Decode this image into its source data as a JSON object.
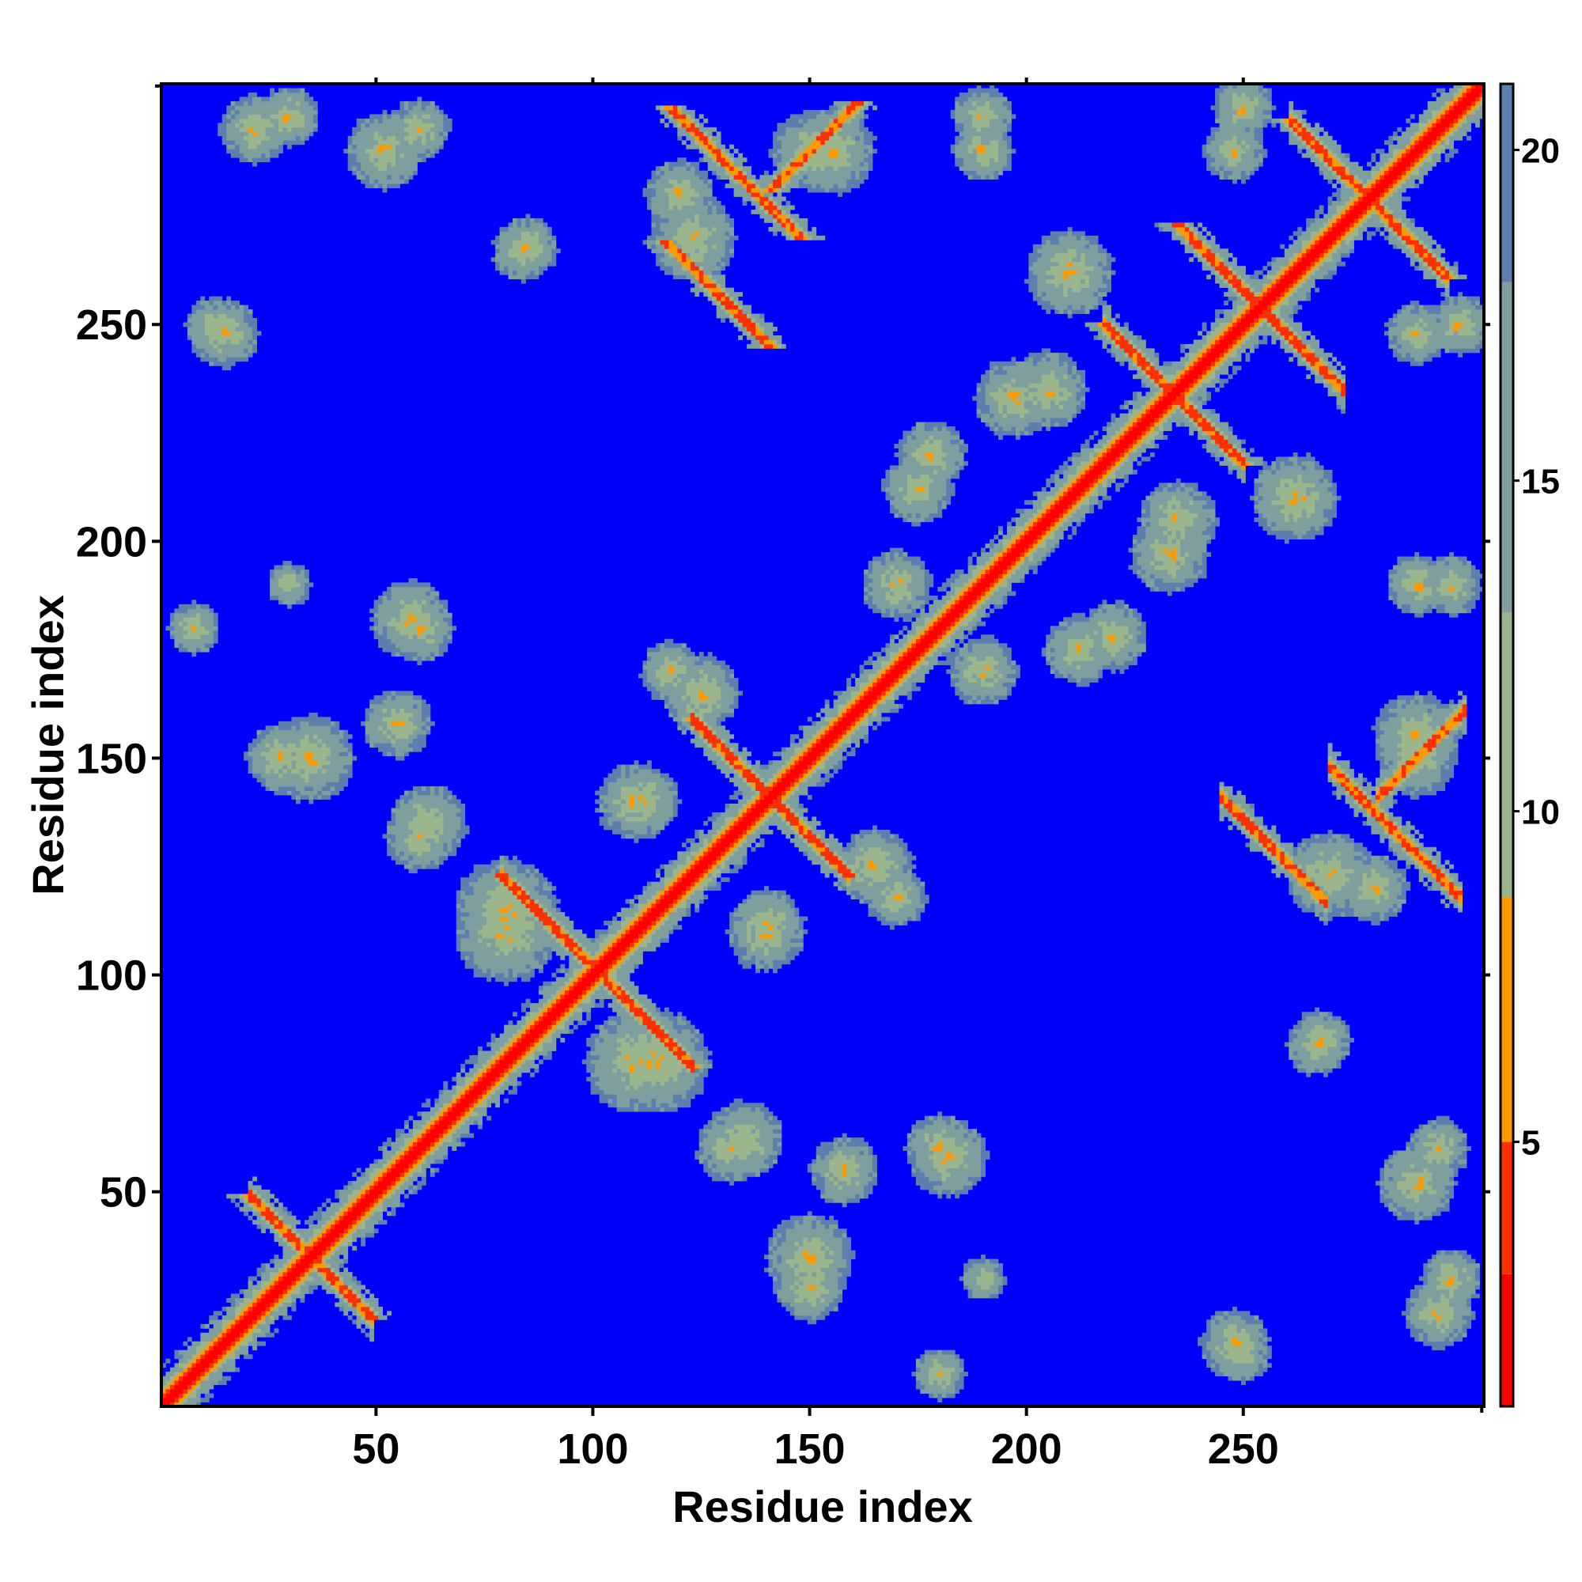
{
  "chart_data": {
    "type": "heatmap",
    "title": "",
    "xlabel": "Residue index",
    "ylabel": "Residue index",
    "n_residues": 305,
    "xlim": [
      1,
      305
    ],
    "ylim": [
      1,
      305
    ],
    "x_ticks": [
      50,
      100,
      150,
      200,
      250
    ],
    "y_ticks": [
      50,
      100,
      150,
      200,
      250
    ],
    "colorbar": {
      "ticks": [
        5,
        10,
        15,
        20
      ],
      "range": [
        1,
        21
      ],
      "segments": [
        {
          "from": 1,
          "to": 3,
          "color": "#ff0000"
        },
        {
          "from": 3,
          "to": 5,
          "color": "#ff3000"
        },
        {
          "from": 5,
          "to": 8.7,
          "color": "#ff9900"
        },
        {
          "from": 8.7,
          "to": 13,
          "color": "#9bb58d"
        },
        {
          "from": 13,
          "to": 18,
          "color": "#7f9e9e"
        },
        {
          "from": 18,
          "to": 21,
          "color": "#5c7fae"
        }
      ]
    },
    "background_value": 21,
    "background_color": "#0000ff",
    "contact_features": [
      {
        "kind": "diagonal",
        "from": 1,
        "to": 305
      },
      {
        "kind": "antiparallel",
        "center": [
          140,
          140
        ],
        "half_length": 18
      },
      {
        "kind": "antiparallel",
        "center": [
          132,
          284
        ],
        "half_length": 15
      },
      {
        "kind": "antiparallel",
        "center": [
          128,
          256
        ],
        "half_length": 12
      },
      {
        "kind": "antiparallel",
        "center": [
          248,
          258
        ],
        "half_length": 14
      },
      {
        "kind": "antiparallel",
        "center": [
          100,
          100
        ],
        "half_length": 22
      },
      {
        "kind": "antiparallel",
        "center": [
          34,
          34
        ],
        "half_length": 14
      },
      {
        "kind": "antiparallel",
        "center": [
          233,
          233
        ],
        "half_length": 16
      },
      {
        "kind": "antiparallel",
        "center": [
          278,
          278
        ],
        "half_length": 18
      },
      {
        "kind": "parallel",
        "center": [
          150,
          290
        ],
        "half_length": 10
      },
      {
        "kind": "blob",
        "center": [
          22,
          295
        ],
        "radius": 8
      },
      {
        "kind": "blob",
        "center": [
          52,
          290
        ],
        "radius": 9
      },
      {
        "kind": "blob",
        "center": [
          12,
          250
        ],
        "radius": 6
      },
      {
        "kind": "blob",
        "center": [
          84,
          267
        ],
        "radius": 7
      },
      {
        "kind": "blob",
        "center": [
          58,
          182
        ],
        "radius": 9
      },
      {
        "kind": "blob",
        "center": [
          28,
          150
        ],
        "radius": 8
      },
      {
        "kind": "blob",
        "center": [
          62,
          135
        ],
        "radius": 9
      },
      {
        "kind": "blob",
        "center": [
          80,
          110
        ],
        "radius": 12
      },
      {
        "kind": "blob",
        "center": [
          115,
          80
        ],
        "radius": 12
      },
      {
        "kind": "blob",
        "center": [
          132,
          60
        ],
        "radius": 8
      },
      {
        "kind": "blob",
        "center": [
          150,
          35
        ],
        "radius": 10
      },
      {
        "kind": "blob",
        "center": [
          158,
          55
        ],
        "radius": 8
      },
      {
        "kind": "blob",
        "center": [
          180,
          60
        ],
        "radius": 8
      },
      {
        "kind": "blob",
        "center": [
          112,
          140
        ],
        "radius": 8
      },
      {
        "kind": "blob",
        "center": [
          140,
          110
        ],
        "radius": 9
      },
      {
        "kind": "blob",
        "center": [
          165,
          125
        ],
        "radius": 9
      },
      {
        "kind": "blob",
        "center": [
          118,
          170
        ],
        "radius": 7
      },
      {
        "kind": "blob",
        "center": [
          190,
          170
        ],
        "radius": 8
      },
      {
        "kind": "blob",
        "center": [
          178,
          220
        ],
        "radius": 8
      },
      {
        "kind": "blob",
        "center": [
          205,
          235
        ],
        "radius": 9
      },
      {
        "kind": "blob",
        "center": [
          210,
          262
        ],
        "radius": 10
      },
      {
        "kind": "blob",
        "center": [
          233,
          197
        ],
        "radius": 9
      },
      {
        "kind": "blob",
        "center": [
          212,
          175
        ],
        "radius": 8
      },
      {
        "kind": "blob",
        "center": [
          262,
          210
        ],
        "radius": 9
      },
      {
        "kind": "blob",
        "center": [
          270,
          123
        ],
        "radius": 10
      },
      {
        "kind": "blob",
        "center": [
          290,
          155
        ],
        "radius": 10
      },
      {
        "kind": "blob",
        "center": [
          298,
          190
        ],
        "radius": 7
      },
      {
        "kind": "blob",
        "center": [
          268,
          85
        ],
        "radius": 7
      },
      {
        "kind": "blob",
        "center": [
          295,
          60
        ],
        "radius": 7
      },
      {
        "kind": "blob",
        "center": [
          298,
          30
        ],
        "radius": 7
      },
      {
        "kind": "blob",
        "center": [
          248,
          15
        ],
        "radius": 8
      },
      {
        "kind": "blob",
        "center": [
          180,
          8
        ],
        "radius": 6
      },
      {
        "kind": "blob",
        "center": [
          120,
          280
        ],
        "radius": 8
      },
      {
        "kind": "blob",
        "center": [
          150,
          290
        ],
        "radius": 9
      },
      {
        "kind": "blob",
        "center": [
          190,
          290
        ],
        "radius": 7
      },
      {
        "kind": "blob",
        "center": [
          248,
          290
        ],
        "radius": 7
      },
      {
        "kind": "blob",
        "center": [
          300,
          250
        ],
        "radius": 7
      },
      {
        "kind": "blob",
        "center": [
          30,
          190
        ],
        "radius": 5
      }
    ]
  }
}
